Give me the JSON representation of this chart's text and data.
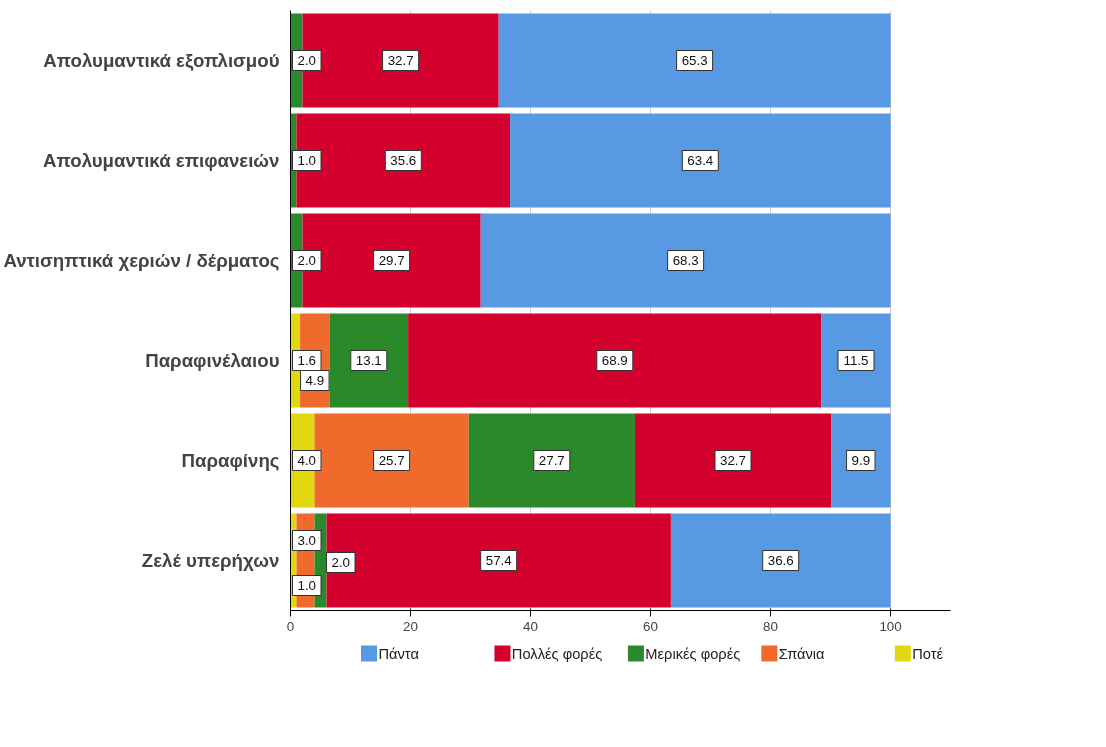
{
  "chart_data": {
    "type": "bar",
    "orientation": "horizontal",
    "stacked": true,
    "categories": [
      "Απολυμαντικά εξοπλισμού",
      "Απολυμαντικά επιφανειών",
      "Αντισηπτικά χεριών / δέρματος",
      "Παραφινέλαιου",
      "Παραφίνης",
      "Ζελέ υπερήχων"
    ],
    "series": [
      {
        "name": "Ποτέ",
        "color": "#e1d80f",
        "values": [
          null,
          null,
          null,
          1.6,
          4.0,
          1.0
        ],
        "value_labels": [
          null,
          null,
          null,
          "1.6",
          "4.0",
          "1.0"
        ]
      },
      {
        "name": "Σπάνια",
        "color": "#f06a2b",
        "values": [
          null,
          null,
          null,
          4.9,
          25.7,
          3.0
        ],
        "value_labels": [
          null,
          null,
          null,
          "4.9",
          "25.7",
          "3.0"
        ]
      },
      {
        "name": "Μερικές φορές",
        "color": "#2a8a2a",
        "values": [
          2.0,
          1.0,
          2.0,
          13.1,
          27.7,
          2.0
        ],
        "value_labels": [
          "2.0",
          "1.0",
          "2.0",
          "13.1",
          "27.7",
          "2.0"
        ]
      },
      {
        "name": "Πολλές φορές",
        "color": "#d4002e",
        "values": [
          32.7,
          35.6,
          29.7,
          68.9,
          32.7,
          57.4
        ],
        "value_labels": [
          "32.7",
          "35.6",
          "29.7",
          "68.9",
          "32.7",
          "57.4"
        ]
      },
      {
        "name": "Πάντα",
        "color": "#5799e3",
        "values": [
          65.3,
          63.4,
          68.3,
          11.5,
          9.9,
          36.6
        ],
        "value_labels": [
          "65.3",
          "63.4",
          "68.3",
          "11.5",
          "9.9",
          "36.6"
        ]
      }
    ],
    "xlim": [
      0,
      110
    ],
    "xticks": [
      0,
      20,
      40,
      60,
      80,
      100
    ],
    "grid": "x",
    "legend": "bottom",
    "data_labels": true
  }
}
